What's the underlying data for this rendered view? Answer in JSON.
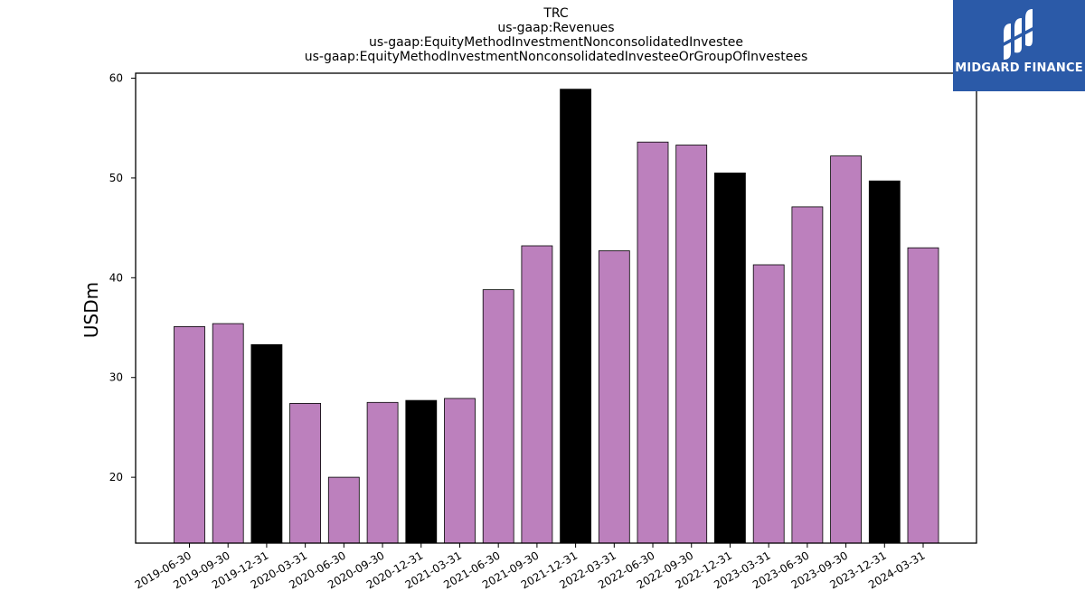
{
  "title_lines": [
    "TRC",
    "us-gaap:Revenues",
    "us-gaap:EquityMethodInvestmentNonconsolidatedInvestee",
    "us-gaap:EquityMethodInvestmentNonconsolidatedInvesteeOrGroupOfInvestees"
  ],
  "logo": {
    "text": "MIDGARD FINANCE",
    "icon": "midgard-logo-icon"
  },
  "colors": {
    "quarter_bar": "#bc80bd",
    "year_end_bar": "#000000",
    "logo_bg": "#2b5aa8"
  },
  "chart_data": {
    "type": "bar",
    "title": "TRC",
    "xlabel": "",
    "ylabel": "USDm",
    "ylim": [
      13.4,
      60.5
    ],
    "yticks": [
      20,
      30,
      40,
      50,
      60
    ],
    "grid": false,
    "categories": [
      "2019-06-30",
      "2019-09-30",
      "2019-12-31",
      "2020-03-31",
      "2020-06-30",
      "2020-09-30",
      "2020-12-31",
      "2021-03-31",
      "2021-06-30",
      "2021-09-30",
      "2021-12-31",
      "2022-03-31",
      "2022-06-30",
      "2022-09-30",
      "2022-12-31",
      "2023-03-31",
      "2023-06-30",
      "2023-09-30",
      "2023-12-31",
      "2024-03-31"
    ],
    "values": [
      35.1,
      35.4,
      33.3,
      27.4,
      20.0,
      27.5,
      27.7,
      27.9,
      38.8,
      43.2,
      58.9,
      42.7,
      53.6,
      53.3,
      50.5,
      41.3,
      47.1,
      52.2,
      49.7,
      43.0
    ],
    "year_end": [
      false,
      false,
      true,
      false,
      false,
      false,
      true,
      false,
      false,
      false,
      true,
      false,
      false,
      false,
      true,
      false,
      false,
      false,
      true,
      false
    ]
  }
}
